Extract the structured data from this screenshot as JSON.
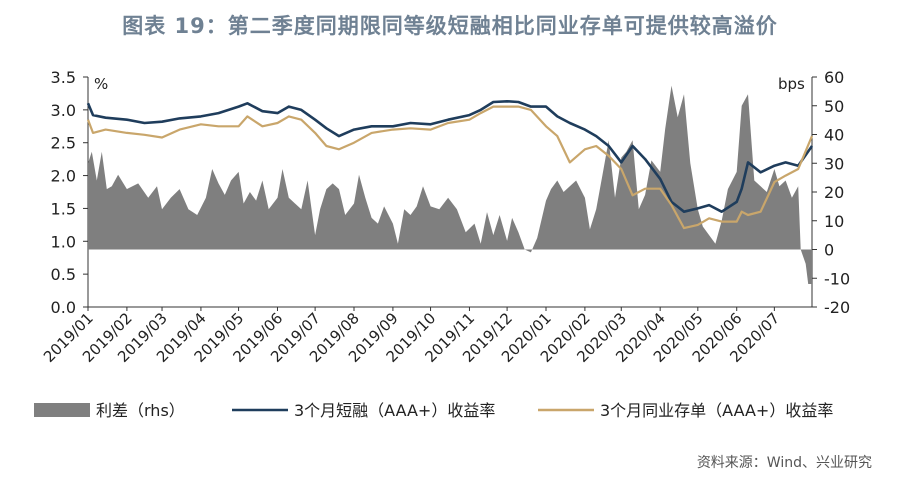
{
  "title": "图表 19：第二季度同期限同等级短融相比同业存单可提供较高溢价",
  "source": "资料来源：Wind、兴业研究",
  "chart_data": {
    "type": "line",
    "left_unit": "%",
    "right_unit": "bps",
    "left_ticks": [
      "0.0",
      "0.5",
      "1.0",
      "1.5",
      "2.0",
      "2.5",
      "3.0",
      "3.5"
    ],
    "right_ticks": [
      "-20",
      "-10",
      "0",
      "10",
      "20",
      "30",
      "40",
      "50",
      "60"
    ],
    "ylim_left": [
      0,
      3.5
    ],
    "ylim_right": [
      -20,
      60
    ],
    "x_ticks": [
      "2019/01",
      "2019/02",
      "2019/03",
      "2019/04",
      "2019/05",
      "2019/06",
      "2019/07",
      "2019/08",
      "2019/09",
      "2019/10",
      "2019/11",
      "2019/12",
      "2020/01",
      "2020/02",
      "2020/03",
      "2020/04",
      "2020/05",
      "2020/06",
      "2020/07"
    ],
    "x_range": [
      "2019-01-01",
      "2020-07-31"
    ],
    "colors": {
      "spread": "#7f7f7f",
      "cp": "#1f3d5c",
      "ncd": "#c9a66b"
    },
    "legend": [
      "利差（rhs）",
      "3个月短融（AAA+）收益率",
      "3个月同业存单（AAA+）收益率"
    ],
    "series": [
      {
        "name": "利差（rhs）",
        "axis": "right",
        "kind": "area",
        "x": [
          "2019-01-01",
          "2019-01-04",
          "2019-01-08",
          "2019-01-12",
          "2019-01-16",
          "2019-01-20",
          "2019-01-25",
          "2019-02-01",
          "2019-02-10",
          "2019-02-18",
          "2019-02-25",
          "2019-03-01",
          "2019-03-08",
          "2019-03-15",
          "2019-03-22",
          "2019-03-29",
          "2019-04-05",
          "2019-04-10",
          "2019-04-15",
          "2019-04-20",
          "2019-04-25",
          "2019-05-01",
          "2019-05-05",
          "2019-05-10",
          "2019-05-15",
          "2019-05-20",
          "2019-05-25",
          "2019-06-01",
          "2019-06-05",
          "2019-06-10",
          "2019-06-15",
          "2019-06-20",
          "2019-06-25",
          "2019-07-01",
          "2019-07-05",
          "2019-07-10",
          "2019-07-15",
          "2019-07-20",
          "2019-07-25",
          "2019-08-01",
          "2019-08-05",
          "2019-08-10",
          "2019-08-15",
          "2019-08-20",
          "2019-08-25",
          "2019-09-01",
          "2019-09-05",
          "2019-09-10",
          "2019-09-15",
          "2019-09-20",
          "2019-09-25",
          "2019-10-01",
          "2019-10-08",
          "2019-10-15",
          "2019-10-22",
          "2019-10-29",
          "2019-11-05",
          "2019-11-10",
          "2019-11-15",
          "2019-11-20",
          "2019-11-25",
          "2019-12-01",
          "2019-12-05",
          "2019-12-10",
          "2019-12-15",
          "2019-12-20",
          "2019-12-25",
          "2020-01-01",
          "2020-01-05",
          "2020-01-10",
          "2020-01-15",
          "2020-01-20",
          "2020-01-25",
          "2020-02-01",
          "2020-02-05",
          "2020-02-10",
          "2020-02-15",
          "2020-02-20",
          "2020-02-25",
          "2020-03-01",
          "2020-03-05",
          "2020-03-10",
          "2020-03-15",
          "2020-03-20",
          "2020-03-25",
          "2020-04-01",
          "2020-04-05",
          "2020-04-10",
          "2020-04-15",
          "2020-04-20",
          "2020-04-25",
          "2020-05-01",
          "2020-05-05",
          "2020-05-10",
          "2020-05-15",
          "2020-05-20",
          "2020-05-25",
          "2020-06-01",
          "2020-06-05",
          "2020-06-10",
          "2020-06-15",
          "2020-06-20",
          "2020-06-25",
          "2020-07-01",
          "2020-07-05",
          "2020-07-10",
          "2020-07-15",
          "2020-07-20",
          "2020-07-22",
          "2020-07-26",
          "2020-07-28",
          "2020-07-31"
        ],
        "y": [
          30,
          34,
          24,
          34,
          21,
          22,
          26,
          21,
          23,
          18,
          22,
          14,
          18,
          21,
          14,
          12,
          18,
          28,
          23,
          19,
          24,
          27,
          16,
          20,
          17,
          24,
          14,
          18,
          28,
          18,
          16,
          14,
          24,
          5,
          14,
          21,
          23,
          21,
          12,
          16,
          26,
          18,
          11,
          9,
          15,
          9,
          2,
          14,
          12,
          15,
          22,
          15,
          14,
          18,
          14,
          6,
          9,
          2,
          13,
          5,
          12,
          3,
          11,
          6,
          0,
          -1,
          4,
          17,
          21,
          24,
          20,
          22,
          24,
          18,
          7,
          14,
          26,
          38,
          18,
          32,
          34,
          38,
          14,
          19,
          31,
          27,
          42,
          57,
          46,
          54,
          30,
          14,
          8,
          5,
          2,
          10,
          21,
          27,
          50,
          54,
          24,
          22,
          20,
          28,
          22,
          24,
          18,
          22,
          0,
          -5,
          -12,
          -12
        ]
      },
      {
        "name": "3个月短融（AAA+）收益率",
        "axis": "left",
        "kind": "line",
        "x": [
          "2019-01-01",
          "2019-01-05",
          "2019-01-15",
          "2019-02-01",
          "2019-02-15",
          "2019-03-01",
          "2019-03-15",
          "2019-04-01",
          "2019-04-15",
          "2019-05-01",
          "2019-05-08",
          "2019-05-20",
          "2019-06-01",
          "2019-06-10",
          "2019-06-20",
          "2019-07-01",
          "2019-07-10",
          "2019-07-20",
          "2019-08-01",
          "2019-08-15",
          "2019-09-01",
          "2019-09-15",
          "2019-10-01",
          "2019-10-15",
          "2019-11-01",
          "2019-11-10",
          "2019-11-20",
          "2019-12-01",
          "2019-12-10",
          "2019-12-20",
          "2020-01-01",
          "2020-01-10",
          "2020-01-20",
          "2020-02-01",
          "2020-02-10",
          "2020-02-20",
          "2020-03-01",
          "2020-03-10",
          "2020-03-20",
          "2020-04-01",
          "2020-04-10",
          "2020-04-20",
          "2020-05-01",
          "2020-05-10",
          "2020-05-20",
          "2020-06-01",
          "2020-06-05",
          "2020-06-10",
          "2020-06-20",
          "2020-07-01",
          "2020-07-10",
          "2020-07-20",
          "2020-07-31"
        ],
        "y": [
          3.1,
          2.92,
          2.88,
          2.85,
          2.8,
          2.82,
          2.87,
          2.9,
          2.95,
          3.05,
          3.1,
          2.98,
          2.95,
          3.05,
          3.0,
          2.85,
          2.72,
          2.6,
          2.7,
          2.75,
          2.75,
          2.8,
          2.78,
          2.85,
          2.92,
          3.0,
          3.12,
          3.13,
          3.12,
          3.05,
          3.05,
          2.9,
          2.8,
          2.7,
          2.6,
          2.45,
          2.2,
          2.45,
          2.25,
          1.95,
          1.6,
          1.45,
          1.5,
          1.55,
          1.45,
          1.6,
          1.8,
          2.2,
          2.05,
          2.15,
          2.2,
          2.15,
          2.45
        ]
      },
      {
        "name": "3个月同业存单（AAA+）收益率",
        "axis": "left",
        "kind": "line",
        "x": [
          "2019-01-01",
          "2019-01-05",
          "2019-01-15",
          "2019-02-01",
          "2019-02-15",
          "2019-03-01",
          "2019-03-15",
          "2019-04-01",
          "2019-04-15",
          "2019-05-01",
          "2019-05-08",
          "2019-05-20",
          "2019-06-01",
          "2019-06-10",
          "2019-06-20",
          "2019-07-01",
          "2019-07-10",
          "2019-07-20",
          "2019-08-01",
          "2019-08-15",
          "2019-09-01",
          "2019-09-15",
          "2019-10-01",
          "2019-10-15",
          "2019-11-01",
          "2019-11-10",
          "2019-11-20",
          "2019-12-01",
          "2019-12-10",
          "2019-12-20",
          "2020-01-01",
          "2020-01-10",
          "2020-01-20",
          "2020-02-01",
          "2020-02-10",
          "2020-02-20",
          "2020-03-01",
          "2020-03-10",
          "2020-03-20",
          "2020-04-01",
          "2020-04-10",
          "2020-04-20",
          "2020-05-01",
          "2020-05-10",
          "2020-05-20",
          "2020-06-01",
          "2020-06-05",
          "2020-06-10",
          "2020-06-20",
          "2020-07-01",
          "2020-07-10",
          "2020-07-20",
          "2020-07-31"
        ],
        "y": [
          2.85,
          2.65,
          2.7,
          2.65,
          2.62,
          2.58,
          2.7,
          2.78,
          2.75,
          2.75,
          2.9,
          2.75,
          2.8,
          2.9,
          2.85,
          2.65,
          2.45,
          2.4,
          2.5,
          2.65,
          2.7,
          2.72,
          2.7,
          2.8,
          2.85,
          2.95,
          3.05,
          3.05,
          3.05,
          3.0,
          2.75,
          2.6,
          2.2,
          2.4,
          2.45,
          2.3,
          2.1,
          1.7,
          1.8,
          1.8,
          1.55,
          1.2,
          1.25,
          1.35,
          1.3,
          1.3,
          1.45,
          1.4,
          1.45,
          1.9,
          2.0,
          2.1,
          2.6
        ]
      }
    ]
  }
}
